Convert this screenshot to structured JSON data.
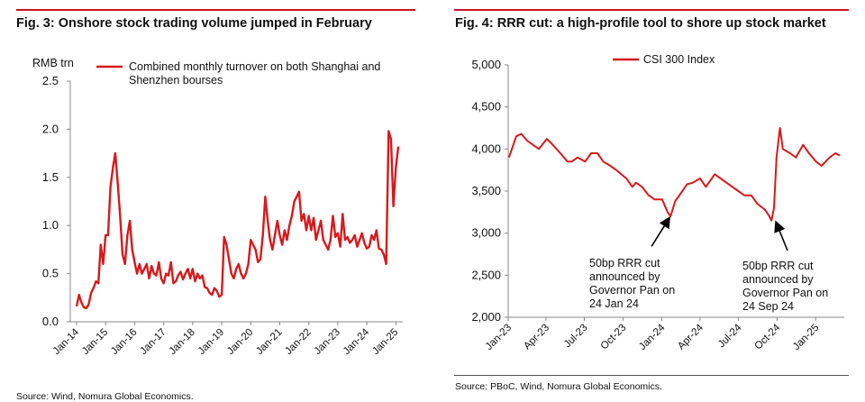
{
  "left": {
    "title": "Fig. 3: Onshore stock trading volume jumped in February",
    "source": "Source: Wind, Nomura Global Economics.",
    "unit_label": "RMB trn",
    "legend": "Combined monthly turnover on both Shanghai and Shenzhen bourses",
    "legend_line1": "Combined monthly turnover on both Shanghai and",
    "legend_line2": "Shenzhen bourses"
  },
  "right": {
    "title": "Fig. 4: RRR cut: a high-profile tool to shore up stock market",
    "source": "Source: PBoC, Wind, Nomura Global Economics.",
    "legend": "CSI 300 Index",
    "annotation1": [
      "50bp RRR cut",
      "announced by",
      "Governor Pan on",
      "24 Jan 24"
    ],
    "annotation2": [
      "50bp RRR cut",
      "announced by",
      "Governor Pan on",
      "24 Sep 24"
    ]
  },
  "colors": {
    "series": "#d7191c",
    "rule": "#c8102e",
    "axis": "#888888"
  },
  "chart_data": [
    {
      "type": "line",
      "title": "Fig. 3: Onshore stock trading volume jumped in February",
      "ylabel": "RMB trn",
      "ylim": [
        0,
        2.5
      ],
      "yticks": [
        "0.0",
        "0.5",
        "1.0",
        "1.5",
        "2.0",
        "2.5"
      ],
      "xticks": [
        "Jan-14",
        "Jan-15",
        "Jan-16",
        "Jan-17",
        "Jan-18",
        "Jan-19",
        "Jan-20",
        "Jan-21",
        "Jan-22",
        "Jan-23",
        "Jan-24",
        "Jan-25"
      ],
      "legend_placement": "top",
      "series": [
        {
          "name": "Combined monthly turnover on both Shanghai and Shenzhen bourses",
          "x": [
            "2014-01",
            "2014-02",
            "2014-03",
            "2014-04",
            "2014-05",
            "2014-06",
            "2014-07",
            "2014-08",
            "2014-09",
            "2014-10",
            "2014-11",
            "2014-12",
            "2015-01",
            "2015-02",
            "2015-03",
            "2015-04",
            "2015-05",
            "2015-06",
            "2015-07",
            "2015-08",
            "2015-09",
            "2015-10",
            "2015-11",
            "2015-12",
            "2016-01",
            "2016-02",
            "2016-03",
            "2016-04",
            "2016-05",
            "2016-06",
            "2016-07",
            "2016-08",
            "2016-09",
            "2016-10",
            "2016-11",
            "2016-12",
            "2017-01",
            "2017-02",
            "2017-03",
            "2017-04",
            "2017-05",
            "2017-06",
            "2017-07",
            "2017-08",
            "2017-09",
            "2017-10",
            "2017-11",
            "2017-12",
            "2018-01",
            "2018-02",
            "2018-03",
            "2018-04",
            "2018-05",
            "2018-06",
            "2018-07",
            "2018-08",
            "2018-09",
            "2018-10",
            "2018-11",
            "2018-12",
            "2019-01",
            "2019-02",
            "2019-03",
            "2019-04",
            "2019-05",
            "2019-06",
            "2019-07",
            "2019-08",
            "2019-09",
            "2019-10",
            "2019-11",
            "2019-12",
            "2020-01",
            "2020-02",
            "2020-03",
            "2020-04",
            "2020-05",
            "2020-06",
            "2020-07",
            "2020-08",
            "2020-09",
            "2020-10",
            "2020-11",
            "2020-12",
            "2021-01",
            "2021-02",
            "2021-03",
            "2021-04",
            "2021-05",
            "2021-06",
            "2021-07",
            "2021-08",
            "2021-09",
            "2021-10",
            "2021-11",
            "2021-12",
            "2022-01",
            "2022-02",
            "2022-03",
            "2022-04",
            "2022-05",
            "2022-06",
            "2022-07",
            "2022-08",
            "2022-09",
            "2022-10",
            "2022-11",
            "2022-12",
            "2023-01",
            "2023-02",
            "2023-03",
            "2023-04",
            "2023-05",
            "2023-06",
            "2023-07",
            "2023-08",
            "2023-09",
            "2023-10",
            "2023-11",
            "2023-12",
            "2024-01",
            "2024-02",
            "2024-03",
            "2024-04",
            "2024-05",
            "2024-06",
            "2024-07",
            "2024-08",
            "2024-09",
            "2024-10",
            "2024-11",
            "2024-12",
            "2025-01",
            "2025-02"
          ],
          "values": [
            0.16,
            0.28,
            0.2,
            0.15,
            0.14,
            0.18,
            0.3,
            0.35,
            0.42,
            0.4,
            0.8,
            0.6,
            0.9,
            0.9,
            1.4,
            1.6,
            1.75,
            1.45,
            1.1,
            0.7,
            0.6,
            0.9,
            1.05,
            0.75,
            0.62,
            0.5,
            0.6,
            0.5,
            0.55,
            0.6,
            0.45,
            0.58,
            0.5,
            0.48,
            0.62,
            0.45,
            0.4,
            0.5,
            0.48,
            0.62,
            0.4,
            0.42,
            0.48,
            0.52,
            0.44,
            0.5,
            0.55,
            0.45,
            0.55,
            0.42,
            0.5,
            0.45,
            0.48,
            0.36,
            0.35,
            0.3,
            0.28,
            0.35,
            0.32,
            0.26,
            0.28,
            0.88,
            0.8,
            0.65,
            0.5,
            0.45,
            0.55,
            0.6,
            0.5,
            0.45,
            0.5,
            0.6,
            0.85,
            0.8,
            0.75,
            0.62,
            0.65,
            0.9,
            1.3,
            1.05,
            0.85,
            0.75,
            0.9,
            1.05,
            0.9,
            0.8,
            0.95,
            0.85,
            1.0,
            1.1,
            1.25,
            1.3,
            1.35,
            1.05,
            1.12,
            0.95,
            1.1,
            0.95,
            1.08,
            0.85,
            0.95,
            1.05,
            0.85,
            0.8,
            0.75,
            0.85,
            1.1,
            0.88,
            0.92,
            0.78,
            1.12,
            0.85,
            0.88,
            0.82,
            0.85,
            0.9,
            0.78,
            0.85,
            0.92,
            0.82,
            0.76,
            0.78,
            0.9,
            0.85,
            0.95,
            0.76,
            0.75,
            0.7,
            0.6,
            1.98,
            1.9,
            1.2,
            1.6,
            1.82
          ]
        }
      ]
    },
    {
      "type": "line",
      "title": "Fig. 4: RRR cut: a high-profile tool to shore up stock market",
      "ylim": [
        2000,
        5000
      ],
      "yticks": [
        "2,000",
        "2,500",
        "3,000",
        "3,500",
        "4,000",
        "4,500",
        "5,000"
      ],
      "xticks": [
        "Jan-23",
        "Apr-23",
        "Jul-23",
        "Oct-23",
        "Jan-24",
        "Apr-24",
        "Jul-24",
        "Oct-24",
        "Jan-25"
      ],
      "legend_placement": "top",
      "annotations": [
        {
          "date": "2024-01-24",
          "value": 3250,
          "text": "50bp RRR cut announced by Governor Pan on 24 Jan 24"
        },
        {
          "date": "2024-09-24",
          "value": 3200,
          "text": "50bp RRR cut announced by Governor Pan on 24 Sep 24"
        }
      ],
      "series": [
        {
          "name": "CSI 300 Index",
          "x": [
            "2023-01-03",
            "2023-01-20",
            "2023-02-01",
            "2023-02-15",
            "2023-03-01",
            "2023-03-15",
            "2023-04-03",
            "2023-04-17",
            "2023-05-05",
            "2023-05-22",
            "2023-06-01",
            "2023-06-15",
            "2023-07-03",
            "2023-07-17",
            "2023-08-01",
            "2023-08-15",
            "2023-09-01",
            "2023-09-15",
            "2023-10-09",
            "2023-10-23",
            "2023-11-01",
            "2023-11-15",
            "2023-12-01",
            "2023-12-15",
            "2024-01-02",
            "2024-01-15",
            "2024-01-22",
            "2024-02-02",
            "2024-02-19",
            "2024-03-01",
            "2024-03-15",
            "2024-04-01",
            "2024-04-15",
            "2024-05-06",
            "2024-05-20",
            "2024-06-03",
            "2024-06-17",
            "2024-07-01",
            "2024-07-15",
            "2024-08-01",
            "2024-08-15",
            "2024-09-02",
            "2024-09-13",
            "2024-09-18",
            "2024-09-24",
            "2024-09-30",
            "2024-10-08",
            "2024-10-15",
            "2024-11-01",
            "2024-11-15",
            "2024-12-02",
            "2024-12-16",
            "2025-01-02",
            "2025-01-15",
            "2025-02-03",
            "2025-02-17",
            "2025-02-28"
          ],
          "values": [
            3900,
            4150,
            4180,
            4100,
            4050,
            4000,
            4120,
            4050,
            3950,
            3850,
            3850,
            3900,
            3850,
            3950,
            3950,
            3850,
            3800,
            3750,
            3650,
            3550,
            3600,
            3550,
            3450,
            3400,
            3400,
            3250,
            3200,
            3380,
            3500,
            3580,
            3600,
            3650,
            3550,
            3700,
            3650,
            3600,
            3550,
            3500,
            3450,
            3450,
            3350,
            3280,
            3200,
            3150,
            3300,
            3900,
            4250,
            4000,
            3950,
            3900,
            4050,
            3950,
            3850,
            3800,
            3900,
            3950,
            3920
          ]
        }
      ]
    }
  ]
}
